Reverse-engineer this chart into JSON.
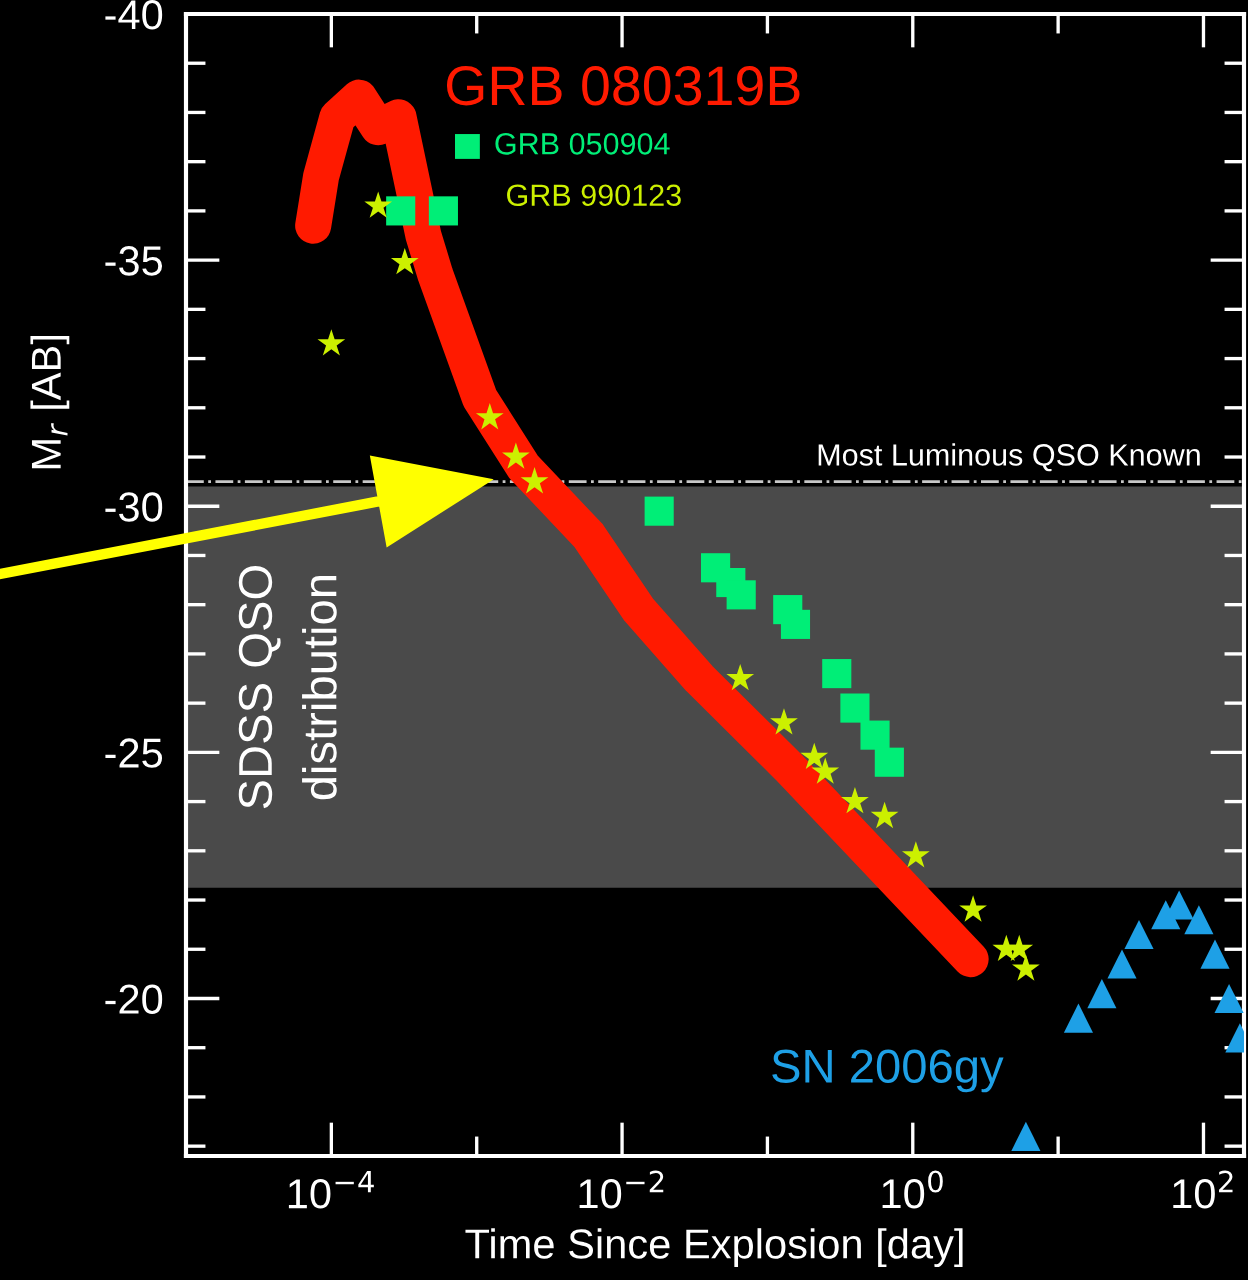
{
  "chart_data": {
    "type": "line",
    "xlabel": "Time Since Explosion [day]",
    "ylabel": "M$_{r}$ [AB]",
    "log": "x",
    "xlim": [
      1e-05,
      190
    ],
    "ylim": [
      -16.8,
      -40
    ],
    "xticks": [
      {
        "value": 0.0001,
        "label": "10$^{−4}$"
      },
      {
        "value": 0.001,
        "label": null
      },
      {
        "value": 0.01,
        "label": "10$^{−2}$"
      },
      {
        "value": 0.1,
        "label": null
      },
      {
        "value": 1,
        "label": "10$^{0}$"
      },
      {
        "value": 10,
        "label": null
      },
      {
        "value": 100,
        "label": "10$^{2}$"
      }
    ],
    "yticks": [
      -40,
      {
        "value": -39,
        "label": null
      },
      {
        "value": -38,
        "label": null
      },
      {
        "value": -37,
        "label": null
      },
      {
        "value": -36,
        "label": null
      },
      -35,
      {
        "value": -34,
        "label": null
      },
      {
        "value": -33,
        "label": null
      },
      {
        "value": -32,
        "label": null
      },
      {
        "value": -31,
        "label": null
      },
      -30,
      {
        "value": -29,
        "label": null
      },
      {
        "value": -28,
        "label": null
      },
      {
        "value": -27,
        "label": null
      },
      {
        "value": -26,
        "label": null
      },
      -25,
      {
        "value": -24,
        "label": null
      },
      {
        "value": -23,
        "label": null
      },
      {
        "value": -22,
        "label": null
      },
      {
        "value": -21,
        "label": null
      },
      -20,
      {
        "value": -19,
        "label": null
      },
      {
        "value": -18,
        "label": null
      },
      {
        "value": -17,
        "label": null
      }
    ],
    "grid": false,
    "legend": "top",
    "series": [
      {
        "name": "GRB 080319B",
        "color": "#ff1a00",
        "marker": "none",
        "x": [
          7.5e-05,
          8.5e-05,
          0.00011,
          0.000155,
          0.00021,
          0.00029,
          0.00043,
          0.00052,
          0.00105,
          0.0021,
          0.0059,
          0.013,
          0.034,
          0.14,
          2.5
        ],
        "values": [
          -35.7,
          -36.7,
          -37.9,
          -38.3,
          -37.7,
          -37.9,
          -35.5,
          -34.7,
          -32.2,
          -30.8,
          -29.4,
          -27.9,
          -26.5,
          -24.7,
          -20.8
        ]
      },
      {
        "name": "GRB 050904",
        "type": "scatter",
        "color": "#00ee77",
        "marker": "square",
        "x": [
          0.0003,
          0.00059,
          0.018,
          0.044,
          0.056,
          0.066,
          0.138,
          0.156,
          0.3,
          0.4,
          0.55,
          0.69
        ],
        "values": [
          -36.0,
          -36.0,
          -29.9,
          -28.75,
          -28.45,
          -28.2,
          -27.9,
          -27.6,
          -26.6,
          -25.9,
          -25.35,
          -24.8
        ]
      },
      {
        "name": "GRB 990123",
        "type": "scatter",
        "color": "#ccf000",
        "marker": "star",
        "x": [
          0.0001,
          0.00021,
          0.00032,
          0.00123,
          0.00186,
          0.0025,
          0.065,
          0.13,
          0.21,
          0.25,
          0.4,
          0.64,
          1.05,
          2.6,
          4.4,
          5.4,
          6.0
        ],
        "values": [
          -33.3,
          -36.1,
          -34.95,
          -31.8,
          -31.0,
          -30.5,
          -26.5,
          -25.6,
          -24.9,
          -24.6,
          -24.0,
          -23.7,
          -22.9,
          -21.8,
          -21.0,
          -21.0,
          -20.6
        ]
      },
      {
        "name": "SN 2006gy",
        "type": "scatter",
        "color": "#1ea0e6",
        "marker": "triangle",
        "x": [
          6.0,
          13.8,
          20,
          27.5,
          36,
          55,
          68,
          93,
          120,
          150,
          178
        ],
        "values": [
          -17.2,
          -19.6,
          -20.1,
          -20.7,
          -21.3,
          -21.7,
          -21.9,
          -21.6,
          -20.9,
          -20.0,
          -19.2
        ]
      }
    ],
    "ref_lines": [
      {
        "axis": "y",
        "value": -30.5,
        "label": "Most Luminous QSO Known",
        "color": "#c8c8c8",
        "line_style": "dashdot"
      }
    ],
    "bands": [
      {
        "axis": "y",
        "from": -30.4,
        "to": -22.25,
        "label": "SDSS QSO\ndistribution",
        "color": "#4a4a4a"
      }
    ]
  }
}
